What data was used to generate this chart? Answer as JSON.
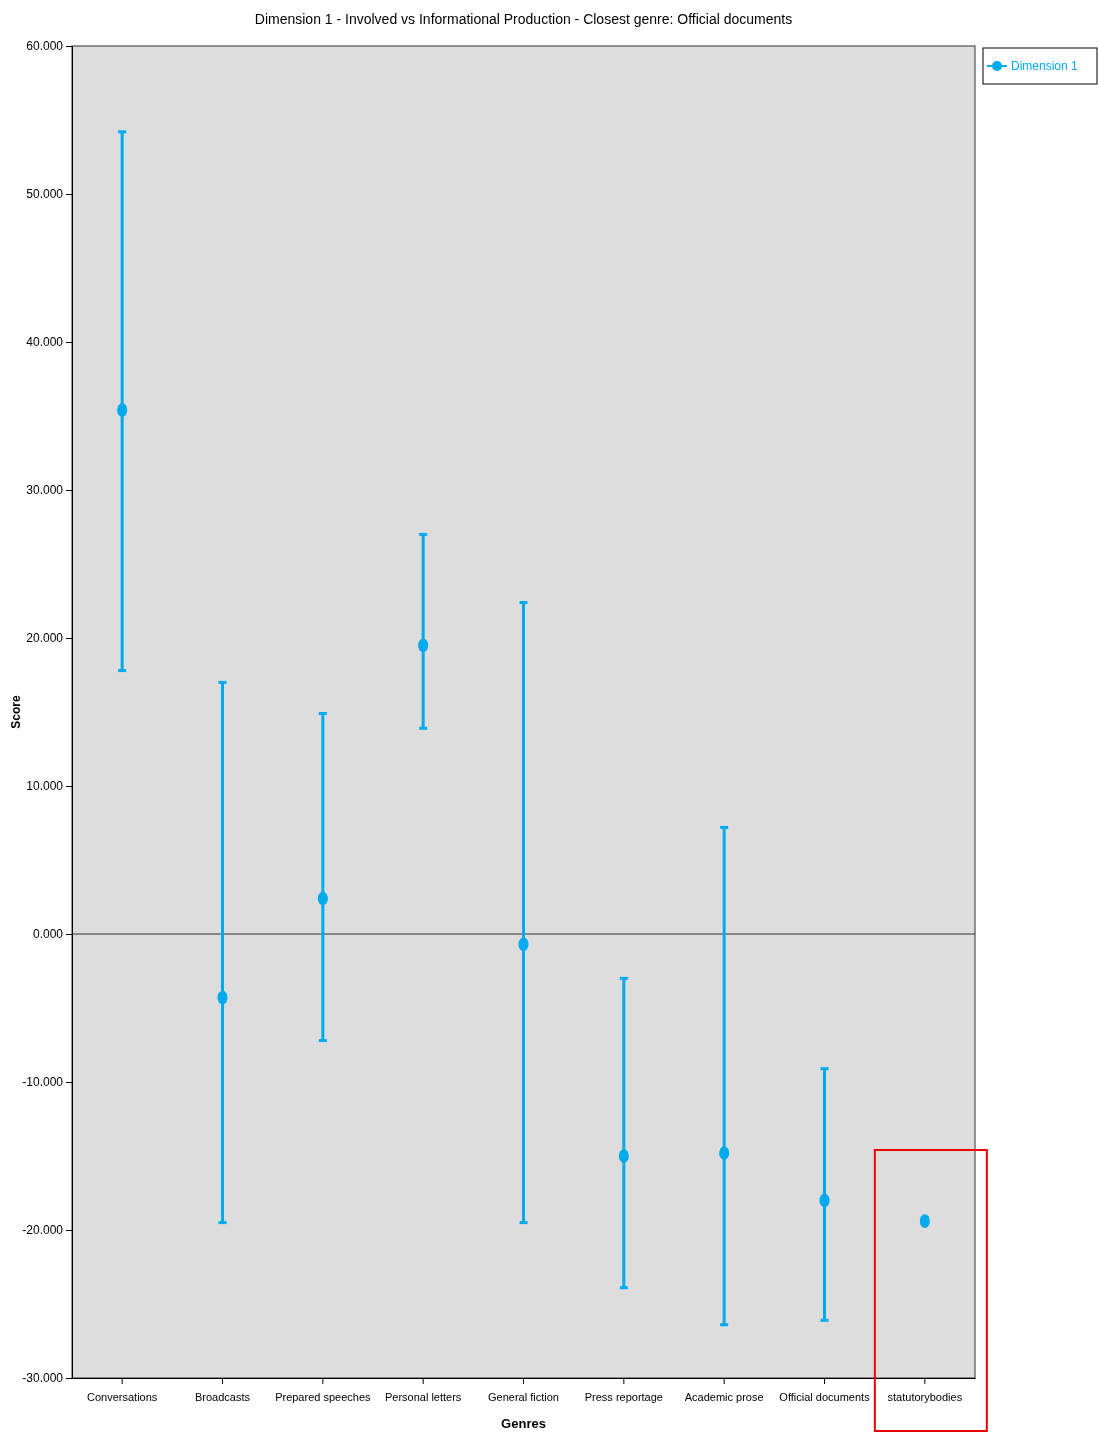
{
  "chart_data": {
    "type": "scatter",
    "title": "Dimension 1 - Involved vs Informational Production - Closest genre: Official documents",
    "xlabel": "Genres",
    "ylabel": "Score",
    "categories": [
      "Conversations",
      "Broadcasts",
      "Prepared speeches",
      "Personal letters",
      "General fiction",
      "Press reportage",
      "Academic prose",
      "Official documents",
      "statutorybodies"
    ],
    "series": [
      {
        "name": "Dimension 1",
        "color": "#00aaee",
        "values": [
          35.4,
          -4.3,
          2.4,
          19.5,
          -0.7,
          -15.0,
          -14.8,
          -18.0,
          -19.4
        ],
        "errors": [
          [
            17.8,
            54.2
          ],
          [
            -19.5,
            17.0
          ],
          [
            -7.2,
            14.9
          ],
          [
            13.9,
            27.0
          ],
          [
            -19.5,
            22.4
          ],
          [
            -23.9,
            -3.0
          ],
          [
            -26.4,
            7.2
          ],
          [
            -26.1,
            -9.1
          ],
          null
        ]
      }
    ],
    "ylim": [
      -30,
      60
    ],
    "yticks": [
      {
        "value": -30,
        "label": "-30.000"
      },
      {
        "value": -20,
        "label": "-20.000"
      },
      {
        "value": -10,
        "label": "-10.000"
      },
      {
        "value": 0,
        "label": "0.000"
      },
      {
        "value": 10,
        "label": "10.000"
      },
      {
        "value": 20,
        "label": "20.000"
      },
      {
        "value": 30,
        "label": "30.000"
      },
      {
        "value": 40,
        "label": "40.000"
      },
      {
        "value": 50,
        "label": "50.000"
      },
      {
        "value": 60,
        "label": "60.000"
      }
    ],
    "ref_lines": [
      {
        "axis": "y",
        "value": 0,
        "color": "#333333"
      }
    ],
    "marker": "circle",
    "legend": "top right"
  }
}
